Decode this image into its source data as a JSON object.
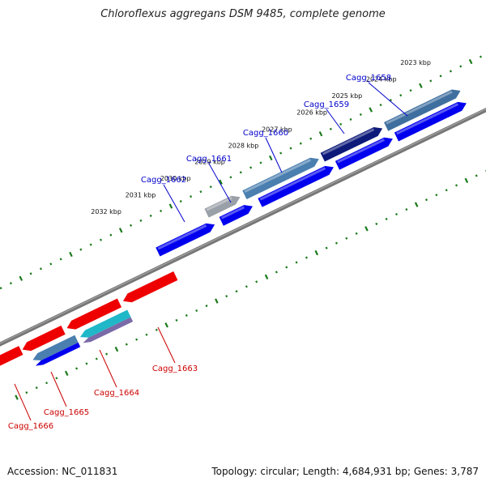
{
  "title": "Chloroflexus aggregans DSM 9485, complete genome",
  "accession_text": "Accession: NC_011831",
  "topology_text": "Topology: circular; Length: 4,684,931 bp; Genes: 3,787",
  "colors": {
    "forward_gene": "#0000ee",
    "reverse_gene": "#ee0000",
    "label_forward": "#0000cc",
    "label_reverse": "#cc0000",
    "backbone": "#777777",
    "ticks": "#1a7a1a"
  },
  "kbp_ticks": [
    "2023 kbp",
    "2024 kbp",
    "2025 kbp",
    "2026 kbp",
    "2027 kbp",
    "2028 kbp",
    "2029 kbp",
    "2030 kbp",
    "2031 kbp",
    "2032 kbp"
  ],
  "gene_labels_forward": [
    "Cagg_1658",
    "Cagg_1659",
    "Cagg_1660",
    "Cagg_1661",
    "Cagg_1662"
  ],
  "gene_labels_reverse": [
    "Cagg_1663",
    "Cagg_1664",
    "Cagg_1665",
    "Cagg_1666"
  ]
}
